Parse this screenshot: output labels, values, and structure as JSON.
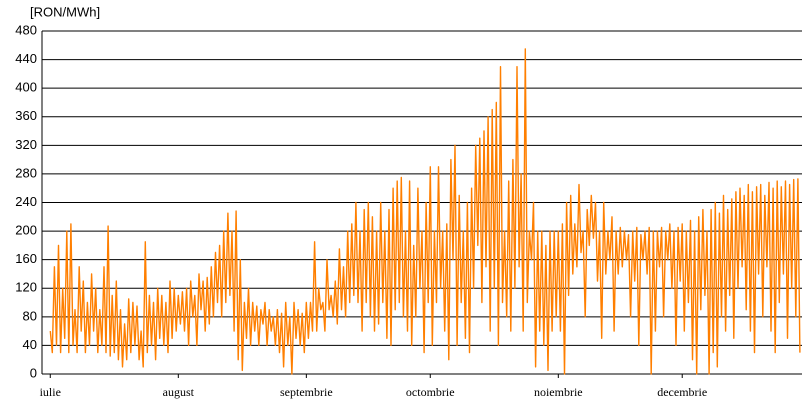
{
  "chart_data": {
    "type": "line",
    "y_label": "[RON/MWh]",
    "xlim": [
      -2,
      182
    ],
    "xticks": [
      {
        "value": 0,
        "label": "iulie"
      },
      {
        "value": 31,
        "label": "august"
      },
      {
        "value": 62,
        "label": "septembrie"
      },
      {
        "value": 92,
        "label": "octombrie"
      },
      {
        "value": 123,
        "label": "noiembrie"
      },
      {
        "value": 153,
        "label": "decembrie"
      }
    ],
    "ylim": [
      0,
      480
    ],
    "yticks": [
      0,
      40,
      80,
      120,
      160,
      200,
      240,
      280,
      320,
      360,
      400,
      440,
      480
    ],
    "grid": true,
    "x": [
      0,
      0.5,
      1,
      1.5,
      2,
      2.5,
      3,
      3.5,
      4,
      4.5,
      5,
      5.5,
      6,
      6.5,
      7,
      7.5,
      8,
      8.5,
      9,
      9.5,
      10,
      10.5,
      11,
      11.5,
      12,
      12.5,
      13,
      13.5,
      14,
      14.5,
      15,
      15.5,
      16,
      16.5,
      17,
      17.5,
      18,
      18.5,
      19,
      19.5,
      20,
      20.5,
      21,
      21.5,
      22,
      22.5,
      23,
      23.5,
      24,
      24.5,
      25,
      25.5,
      26,
      26.5,
      27,
      27.5,
      28,
      28.5,
      29,
      29.5,
      30,
      30.5,
      31,
      31.5,
      32,
      32.5,
      33,
      33.5,
      34,
      34.5,
      35,
      35.5,
      36,
      36.5,
      37,
      37.5,
      38,
      38.5,
      39,
      39.5,
      40,
      40.5,
      41,
      41.5,
      42,
      42.5,
      43,
      43.5,
      44,
      44.5,
      45,
      45.5,
      46,
      46.5,
      47,
      47.5,
      48,
      48.5,
      49,
      49.5,
      50,
      50.5,
      51,
      51.5,
      52,
      52.5,
      53,
      53.5,
      54,
      54.5,
      55,
      55.5,
      56,
      56.5,
      57,
      57.5,
      58,
      58.5,
      59,
      59.5,
      60,
      60.5,
      61,
      61.5,
      62,
      62.5,
      63,
      63.5,
      64,
      64.5,
      65,
      65.5,
      66,
      66.5,
      67,
      67.5,
      68,
      68.5,
      69,
      69.5,
      70,
      70.5,
      71,
      71.5,
      72,
      72.5,
      73,
      73.5,
      74,
      74.5,
      75,
      75.5,
      76,
      76.5,
      77,
      77.5,
      78,
      78.5,
      79,
      79.5,
      80,
      80.5,
      81,
      81.5,
      82,
      82.5,
      83,
      83.5,
      84,
      84.5,
      85,
      85.5,
      86,
      86.5,
      87,
      87.5,
      88,
      88.5,
      89,
      89.5,
      90,
      90.5,
      91,
      91.5,
      92,
      92.5,
      93,
      93.5,
      94,
      94.5,
      95,
      95.5,
      96,
      96.5,
      97,
      97.5,
      98,
      98.5,
      99,
      99.5,
      100,
      100.5,
      101,
      101.5,
      102,
      102.5,
      103,
      103.5,
      104,
      104.5,
      105,
      105.5,
      106,
      106.5,
      107,
      107.5,
      108,
      108.5,
      109,
      109.5,
      110,
      110.5,
      111,
      111.5,
      112,
      112.5,
      113,
      113.5,
      114,
      114.5,
      115,
      115.5,
      116,
      116.5,
      117,
      117.5,
      118,
      118.5,
      119,
      119.5,
      120,
      120.5,
      121,
      121.5,
      122,
      122.5,
      123,
      123.5,
      124,
      124.5,
      125,
      125.5,
      126,
      126.5,
      127,
      127.5,
      128,
      128.5,
      129,
      129.5,
      130,
      130.5,
      131,
      131.5,
      132,
      132.5,
      133,
      133.5,
      134,
      134.5,
      135,
      135.5,
      136,
      136.5,
      137,
      137.5,
      138,
      138.5,
      139,
      139.5,
      140,
      140.5,
      141,
      141.5,
      142,
      142.5,
      143,
      143.5,
      144,
      144.5,
      145,
      145.5,
      146,
      146.5,
      147,
      147.5,
      148,
      148.5,
      149,
      149.5,
      150,
      150.5,
      151,
      151.5,
      152,
      152.5,
      153,
      153.5,
      154,
      154.5,
      155,
      155.5,
      156,
      156.5,
      157,
      157.5,
      158,
      158.5,
      159,
      159.5,
      160,
      160.5,
      161,
      161.5,
      162,
      162.5,
      163,
      163.5,
      164,
      164.5,
      165,
      165.5,
      166,
      166.5,
      167,
      167.5,
      168,
      168.5,
      169,
      169.5,
      170,
      170.5,
      171,
      171.5,
      172,
      172.5,
      173,
      173.5,
      174,
      174.5,
      175,
      175.5,
      176,
      176.5,
      177,
      177.5,
      178,
      178.5,
      179,
      179.5,
      180,
      180.5,
      181,
      181.5
    ],
    "series": [
      {
        "color": "#ff7f00",
        "values": [
          60,
          30,
          150,
          40,
          180,
          30,
          120,
          50,
          200,
          30,
          210,
          40,
          90,
          30,
          150,
          60,
          130,
          30,
          100,
          40,
          140,
          60,
          120,
          30,
          90,
          40,
          150,
          30,
          207,
          25,
          110,
          30,
          130,
          20,
          90,
          10,
          70,
          20,
          105,
          30,
          100,
          40,
          95,
          20,
          60,
          10,
          185,
          30,
          110,
          40,
          100,
          20,
          120,
          50,
          110,
          40,
          100,
          30,
          130,
          50,
          120,
          60,
          110,
          70,
          115,
          60,
          120,
          40,
          130,
          80,
          110,
          40,
          140,
          90,
          130,
          60,
          135,
          70,
          150,
          80,
          170,
          100,
          180,
          80,
          200,
          100,
          225,
          110,
          200,
          60,
          228,
          20,
          160,
          5,
          100,
          50,
          120,
          40,
          100,
          60,
          95,
          40,
          90,
          70,
          100,
          40,
          90,
          60,
          80,
          40,
          90,
          30,
          85,
          10,
          100,
          40,
          80,
          0,
          100,
          50,
          90,
          40,
          85,
          30,
          100,
          50,
          100,
          60,
          185,
          60,
          120,
          90,
          100,
          60,
          160,
          90,
          110,
          80,
          130,
          70,
          175,
          90,
          150,
          80,
          200,
          100,
          210,
          110,
          240,
          100,
          200,
          60,
          230,
          100,
          240,
          80,
          220,
          60,
          200,
          70,
          240,
          100,
          200,
          50,
          230,
          40,
          260,
          90,
          270,
          100,
          275,
          80,
          200,
          60,
          270,
          40,
          180,
          80,
          260,
          120,
          200,
          30,
          240,
          100,
          290,
          40,
          200,
          100,
          290,
          120,
          200,
          60,
          210,
          20,
          300,
          160,
          320,
          40,
          250,
          100,
          200,
          50,
          240,
          30,
          260,
          120,
          320,
          180,
          330,
          100,
          340,
          150,
          360,
          60,
          370,
          120,
          380,
          40,
          430,
          100,
          200,
          80,
          270,
          60,
          300,
          120,
          430,
          150,
          280,
          60,
          455,
          100,
          200,
          160,
          240,
          10,
          200,
          60,
          200,
          40,
          180,
          5,
          200,
          60,
          200,
          80,
          200,
          60,
          210,
          0,
          240,
          110,
          250,
          140,
          210,
          150,
          265,
          170,
          200,
          80,
          230,
          180,
          250,
          190,
          240,
          130,
          200,
          50,
          240,
          140,
          200,
          160,
          220,
          60,
          200,
          140,
          205,
          150,
          200,
          160,
          195,
          80,
          200,
          130,
          205,
          40,
          195,
          160,
          200,
          140,
          205,
          0,
          200,
          60,
          200,
          150,
          205,
          80,
          200,
          160,
          210,
          120,
          200,
          40,
          205,
          130,
          210,
          60,
          200,
          100,
          215,
          20,
          200,
          0,
          220,
          90,
          230,
          110,
          200,
          0,
          230,
          30,
          240,
          10,
          225,
          80,
          250,
          60,
          230,
          110,
          245,
          50,
          255,
          120,
          260,
          150,
          250,
          90,
          265,
          60,
          255,
          30,
          262,
          140,
          265,
          80,
          250,
          150,
          268,
          60,
          260,
          30,
          270,
          100,
          262,
          140,
          270,
          50,
          265,
          120,
          272,
          80,
          273,
          30
        ]
      }
    ]
  }
}
